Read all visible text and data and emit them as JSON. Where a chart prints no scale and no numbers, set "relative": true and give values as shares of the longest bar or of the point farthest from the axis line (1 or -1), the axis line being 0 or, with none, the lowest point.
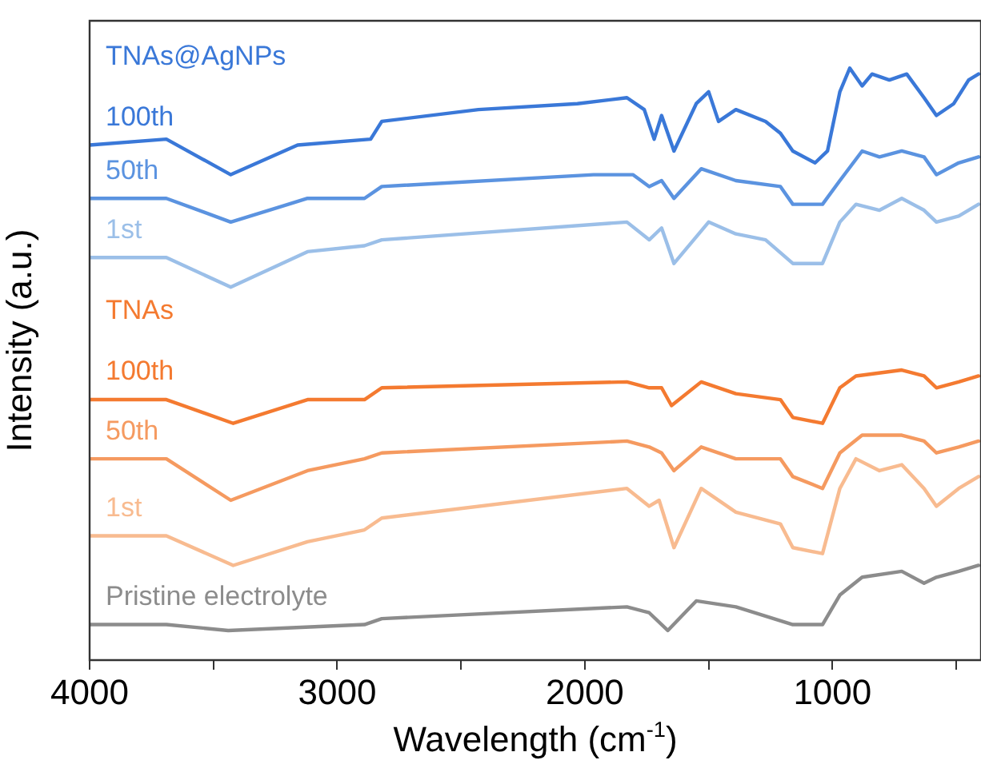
{
  "chart_data": {
    "type": "line",
    "xlabel": "Wavelength (cm$^{-1}$)",
    "ylabel": "Intensity (a.u.)",
    "relative": true,
    "tick_labels": "x",
    "marker": "none",
    "line_style": "solid",
    "xlim": [
      4000,
      400
    ],
    "xticks": [
      4000,
      {
        "value": 3500,
        "label": null
      },
      3000,
      {
        "value": 2500,
        "label": null
      },
      2000,
      {
        "value": 1500,
        "label": null
      },
      1000,
      {
        "value": 500,
        "label": null
      }
    ],
    "annotations": [
      "TNAs@AgNPs",
      "TNAs"
    ],
    "series": [
      {
        "name": "100th",
        "color": "#3a78d8",
        "x": [
          4000,
          3690,
          3430,
          3160,
          2865,
          2820,
          2430,
          2030,
          1830,
          1760,
          1720,
          1690,
          1640,
          1550,
          1500,
          1460,
          1390,
          1270,
          1210,
          1160,
          1070,
          1020,
          970,
          930,
          880,
          840,
          770,
          700,
          630,
          580,
          510,
          450,
          410
        ],
        "values": [
          0.87,
          0.88,
          0.82,
          0.87,
          0.88,
          0.91,
          0.93,
          0.94,
          0.95,
          0.93,
          0.88,
          0.92,
          0.86,
          0.94,
          0.96,
          0.91,
          0.93,
          0.91,
          0.89,
          0.86,
          0.84,
          0.86,
          0.96,
          1.0,
          0.97,
          0.99,
          0.98,
          0.99,
          0.95,
          0.92,
          0.94,
          0.98,
          0.99
        ]
      },
      {
        "name": "50th",
        "color": "#5b93e0",
        "x": [
          4000,
          3690,
          3430,
          3120,
          2890,
          2820,
          1965,
          1806,
          1740,
          1690,
          1640,
          1530,
          1390,
          1210,
          1160,
          1040,
          970,
          880,
          810,
          720,
          630,
          580,
          490,
          410
        ],
        "values": [
          0.78,
          0.78,
          0.74,
          0.78,
          0.78,
          0.8,
          0.82,
          0.82,
          0.8,
          0.81,
          0.78,
          0.83,
          0.81,
          0.8,
          0.77,
          0.77,
          0.81,
          0.86,
          0.85,
          0.86,
          0.85,
          0.82,
          0.84,
          0.85
        ]
      },
      {
        "name": "1st",
        "color": "#9bbfe8",
        "x": [
          4000,
          3690,
          3430,
          3120,
          2890,
          2820,
          1830,
          1740,
          1690,
          1640,
          1500,
          1390,
          1270,
          1160,
          1040,
          970,
          905,
          810,
          720,
          630,
          580,
          490,
          410
        ],
        "values": [
          0.68,
          0.68,
          0.63,
          0.69,
          0.7,
          0.71,
          0.74,
          0.71,
          0.73,
          0.67,
          0.74,
          0.72,
          0.71,
          0.67,
          0.67,
          0.74,
          0.77,
          0.76,
          0.78,
          0.76,
          0.74,
          0.75,
          0.77
        ]
      },
      {
        "name": "100th",
        "color": "#f47a30",
        "x": [
          4000,
          3690,
          3420,
          3120,
          2890,
          2820,
          1830,
          1740,
          1690,
          1650,
          1530,
          1390,
          1210,
          1160,
          1040,
          970,
          905,
          720,
          630,
          580,
          490,
          410
        ],
        "values": [
          0.44,
          0.44,
          0.4,
          0.44,
          0.44,
          0.46,
          0.47,
          0.46,
          0.46,
          0.43,
          0.47,
          0.45,
          0.44,
          0.41,
          0.4,
          0.46,
          0.48,
          0.49,
          0.48,
          0.46,
          0.47,
          0.48
        ]
      },
      {
        "name": "50th",
        "color": "#f59a60",
        "x": [
          4000,
          3690,
          3430,
          3120,
          2890,
          2820,
          1830,
          1740,
          1690,
          1640,
          1530,
          1390,
          1210,
          1160,
          1040,
          970,
          880,
          720,
          630,
          580,
          490,
          410
        ],
        "values": [
          0.34,
          0.34,
          0.27,
          0.32,
          0.34,
          0.35,
          0.37,
          0.36,
          0.35,
          0.32,
          0.36,
          0.34,
          0.34,
          0.31,
          0.29,
          0.35,
          0.38,
          0.38,
          0.37,
          0.35,
          0.36,
          0.37
        ]
      },
      {
        "name": "1st",
        "color": "#f8bb90",
        "x": [
          4000,
          3690,
          3420,
          3120,
          2890,
          2820,
          1830,
          1740,
          1700,
          1640,
          1530,
          1390,
          1210,
          1160,
          1040,
          970,
          905,
          810,
          720,
          630,
          580,
          490,
          410
        ],
        "values": [
          0.21,
          0.21,
          0.16,
          0.2,
          0.22,
          0.24,
          0.29,
          0.26,
          0.27,
          0.19,
          0.29,
          0.25,
          0.23,
          0.19,
          0.18,
          0.29,
          0.34,
          0.32,
          0.33,
          0.29,
          0.26,
          0.29,
          0.31
        ]
      },
      {
        "name": "Pristine electrolyte",
        "color": "#8c8c8c",
        "x": [
          4000,
          3690,
          3440,
          2890,
          2820,
          1830,
          1740,
          1665,
          1550,
          1390,
          1160,
          1040,
          970,
          880,
          720,
          630,
          580,
          490,
          410
        ],
        "values": [
          0.06,
          0.06,
          0.05,
          0.06,
          0.07,
          0.09,
          0.08,
          0.05,
          0.1,
          0.09,
          0.06,
          0.06,
          0.11,
          0.14,
          0.15,
          0.13,
          0.14,
          0.15,
          0.16
        ]
      }
    ]
  }
}
